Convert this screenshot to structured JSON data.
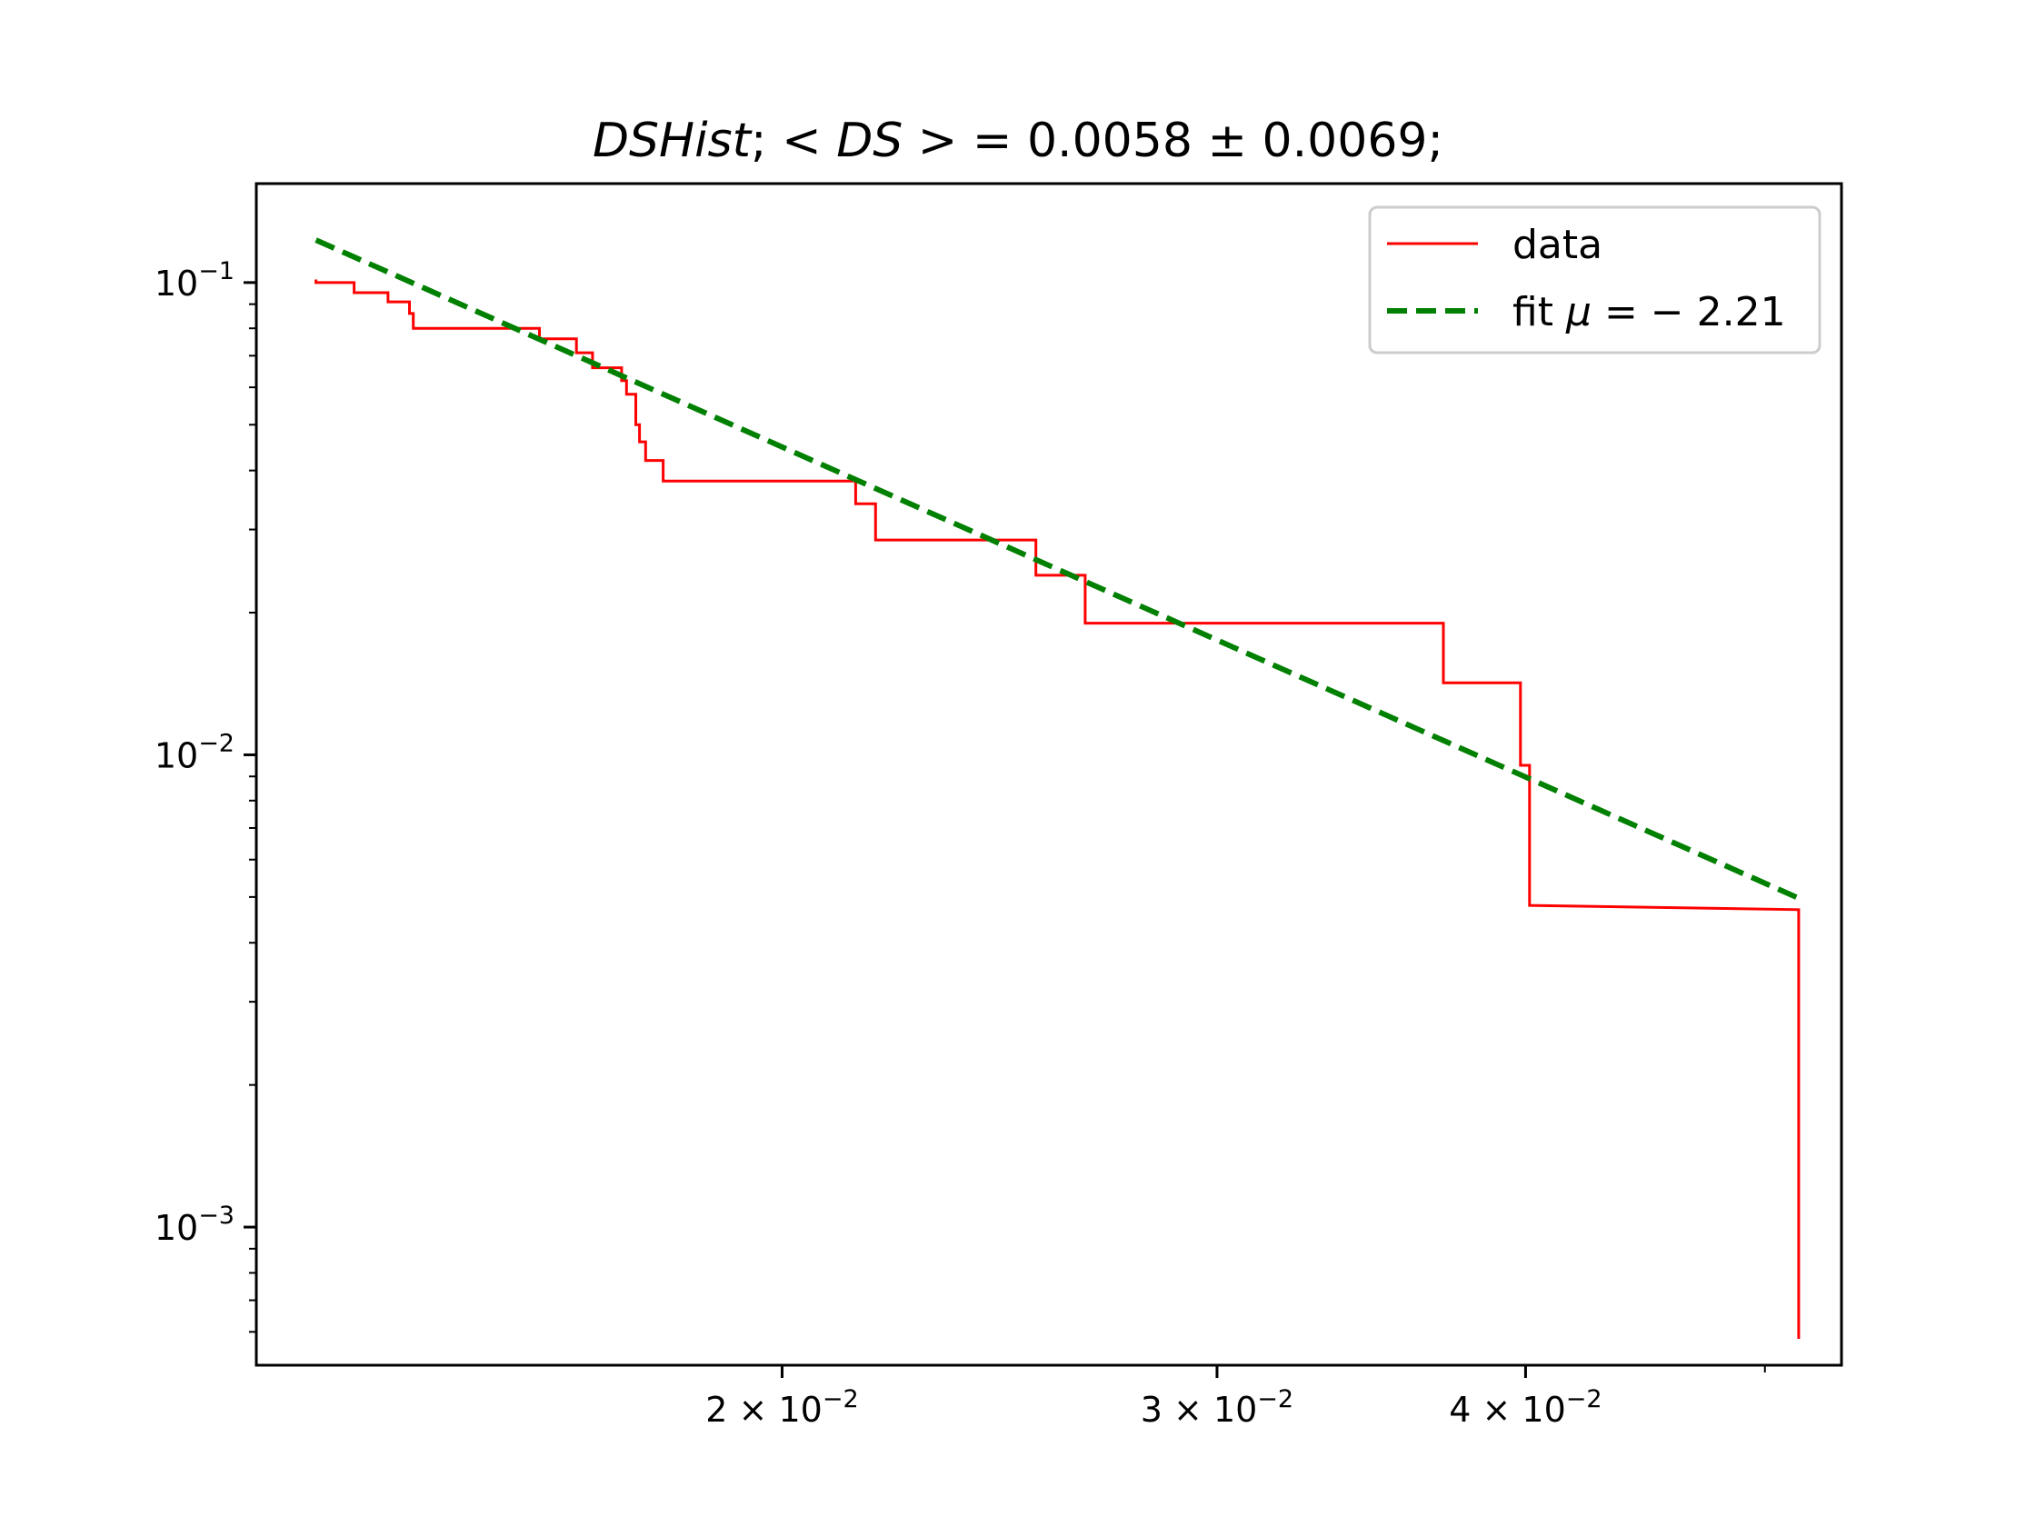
{
  "chart_data": {
    "type": "line",
    "title": "DSHist; <DS> = 0.0058 ± 0.0069;",
    "title_parts": {
      "name": "DSHist",
      "sep1": "; ",
      "mean_label": "< DS >",
      "equals": " = 0.0058 ± 0.0069;"
    },
    "xlabel": "",
    "ylabel": "",
    "x_scale": "log",
    "y_scale": "log",
    "xlim": [
      0.01225,
      0.0537
    ],
    "ylim": [
      0.00051,
      0.162
    ],
    "grid": false,
    "legend_position": "upper right",
    "x_ticks": [
      {
        "value": 0.02,
        "mantissa": "2",
        "exponent": "−2"
      },
      {
        "value": 0.03,
        "mantissa": "3",
        "exponent": "−2"
      },
      {
        "value": 0.04,
        "mantissa": "4",
        "exponent": "−2"
      }
    ],
    "x_minor_ticks": [
      0.05
    ],
    "y_ticks": [
      {
        "value": 0.1,
        "exponent": "−1"
      },
      {
        "value": 0.01,
        "exponent": "−2"
      },
      {
        "value": 0.001,
        "exponent": "−3"
      }
    ],
    "y_minor_ticks": [
      0.09,
      0.08,
      0.07,
      0.06,
      0.05,
      0.04,
      0.03,
      0.02,
      0.009,
      0.008,
      0.007,
      0.006,
      0.005,
      0.004,
      0.003,
      0.002,
      0.0009,
      0.0008,
      0.0007,
      0.0006
    ],
    "series": [
      {
        "name": "data",
        "color": "#ff0000",
        "style": "solid",
        "x": [
          0.01295,
          0.01295,
          0.01342,
          0.01342,
          0.01385,
          0.01385,
          0.01413,
          0.01413,
          0.01418,
          0.01418,
          0.01595,
          0.01595,
          0.01651,
          0.01651,
          0.01676,
          0.01676,
          0.01722,
          0.01722,
          0.0173,
          0.0173,
          0.01745,
          0.01745,
          0.01751,
          0.01751,
          0.01761,
          0.01761,
          0.0179,
          0.0179,
          0.02142,
          0.02142,
          0.02182,
          0.02182,
          0.02534,
          0.02534,
          0.02653,
          0.02653,
          0.03705,
          0.03705,
          0.03981,
          0.03981,
          0.04015,
          0.04015,
          0.0516,
          0.0516
        ],
        "y": [
          0.1015,
          0.1,
          0.1,
          0.0952,
          0.0952,
          0.091,
          0.091,
          0.086,
          0.086,
          0.08,
          0.08,
          0.076,
          0.076,
          0.071,
          0.071,
          0.066,
          0.066,
          0.062,
          0.062,
          0.058,
          0.058,
          0.05,
          0.05,
          0.046,
          0.046,
          0.042,
          0.042,
          0.038,
          0.038,
          0.034,
          0.034,
          0.0285,
          0.0285,
          0.024,
          0.024,
          0.019,
          0.019,
          0.0142,
          0.0142,
          0.0095,
          0.0095,
          0.0048,
          0.0047,
          0.00058
        ]
      },
      {
        "name": "fit μ = − 2.21",
        "color": "#008000",
        "style": "dashed",
        "x": [
          0.01295,
          0.0516
        ],
        "y": [
          0.123,
          0.00497
        ]
      }
    ],
    "legend": [
      {
        "label_plain": "data",
        "color": "#ff0000",
        "style": "solid"
      },
      {
        "label_prefix": "fit ",
        "label_mu": "μ",
        "label_rest": " = − 2.21",
        "color": "#008000",
        "style": "dashed"
      }
    ]
  }
}
